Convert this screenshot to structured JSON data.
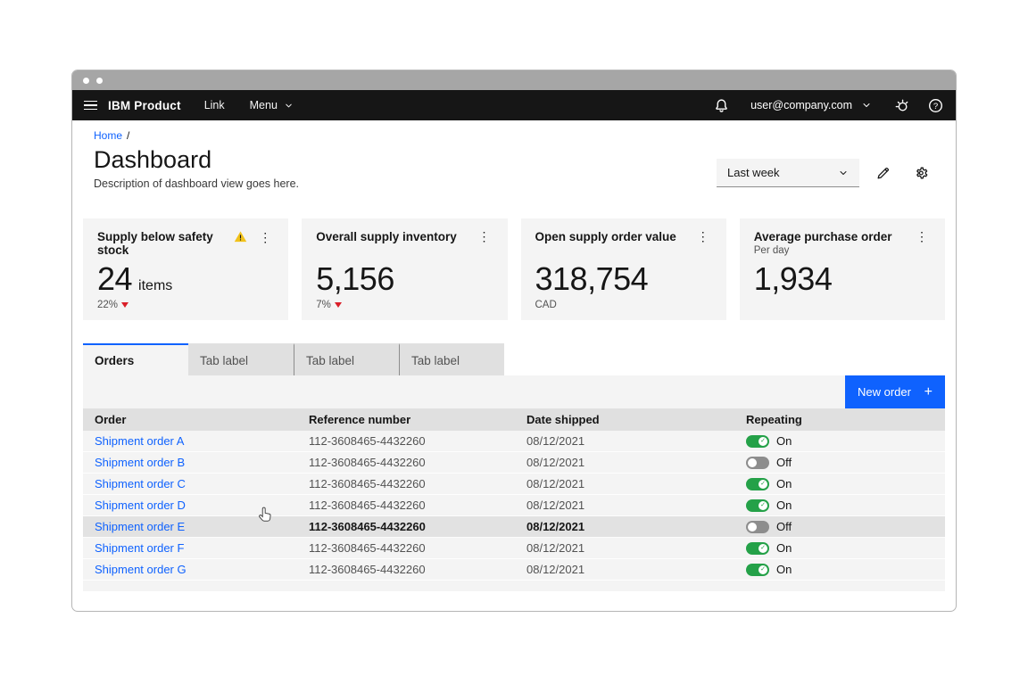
{
  "header": {
    "product_name": "IBM Product",
    "nav": [
      {
        "label": "Link",
        "has_chevron": false
      },
      {
        "label": "Menu",
        "has_chevron": true
      }
    ],
    "user_email": "user@company.com",
    "icon_names": [
      "menu-hamburger-icon",
      "notification-bell-icon",
      "chevron-down-icon",
      "awake-icon",
      "help-icon"
    ]
  },
  "breadcrumb": {
    "items": [
      "Home"
    ],
    "separator": "/"
  },
  "page": {
    "title": "Dashboard",
    "description": "Description of dashboard view goes here."
  },
  "filters": {
    "dropdown_value": "Last week",
    "icon_names": [
      "edit-pencil-icon",
      "settings-gear-icon"
    ]
  },
  "cards": [
    {
      "title": "Supply below safety stock",
      "warning": true,
      "value": "24",
      "suffix": "items",
      "trend": "22%",
      "trend_dir": "down"
    },
    {
      "title": "Overall supply inventory",
      "warning": false,
      "value": "5,156",
      "trend": "7%",
      "trend_dir": "down"
    },
    {
      "title": "Open supply order value",
      "warning": false,
      "value": "318,754",
      "unit": "CAD"
    },
    {
      "title": "Average purchase order",
      "warning": false,
      "subtitle": "Per day",
      "value": "1,934"
    }
  ],
  "tabs": [
    {
      "label": "Orders",
      "active": true
    },
    {
      "label": "Tab label",
      "active": false
    },
    {
      "label": "Tab label",
      "active": false
    },
    {
      "label": "Tab label",
      "active": false
    }
  ],
  "toolbar": {
    "new_order_label": "New order",
    "plus_glyph": "+"
  },
  "table": {
    "columns": [
      "Order",
      "Reference number",
      "Date shipped",
      "Repeating"
    ],
    "rows": [
      {
        "order": "Shipment order A",
        "reference": "112-3608465-4432260",
        "date": "08/12/2021",
        "repeating": true,
        "toggle_label": "On",
        "hovered": false
      },
      {
        "order": "Shipment order B",
        "reference": "112-3608465-4432260",
        "date": "08/12/2021",
        "repeating": false,
        "toggle_label": "Off",
        "hovered": false
      },
      {
        "order": "Shipment order C",
        "reference": "112-3608465-4432260",
        "date": "08/12/2021",
        "repeating": true,
        "toggle_label": "On",
        "hovered": false
      },
      {
        "order": "Shipment order D",
        "reference": "112-3608465-4432260",
        "date": "08/12/2021",
        "repeating": true,
        "toggle_label": "On",
        "hovered": false
      },
      {
        "order": "Shipment order E",
        "reference": "112-3608465-4432260",
        "date": "08/12/2021",
        "repeating": false,
        "toggle_label": "Off",
        "hovered": true
      },
      {
        "order": "Shipment order F",
        "reference": "112-3608465-4432260",
        "date": "08/12/2021",
        "repeating": true,
        "toggle_label": "On",
        "hovered": false
      },
      {
        "order": "Shipment order G",
        "reference": "112-3608465-4432260",
        "date": "08/12/2021",
        "repeating": true,
        "toggle_label": "On",
        "hovered": false
      }
    ]
  },
  "glyphs": {
    "overflow_menu": "⋮",
    "toggle_check": "✓"
  },
  "colors": {
    "accent": "#0f62fe",
    "header_bg": "#161616",
    "layer": "#f4f4f4",
    "layer_accent": "#e0e0e0",
    "toggle_on": "#24a148",
    "toggle_off": "#8d8d8d",
    "warning": "#f1c21b",
    "trend_down": "#da1e28"
  }
}
